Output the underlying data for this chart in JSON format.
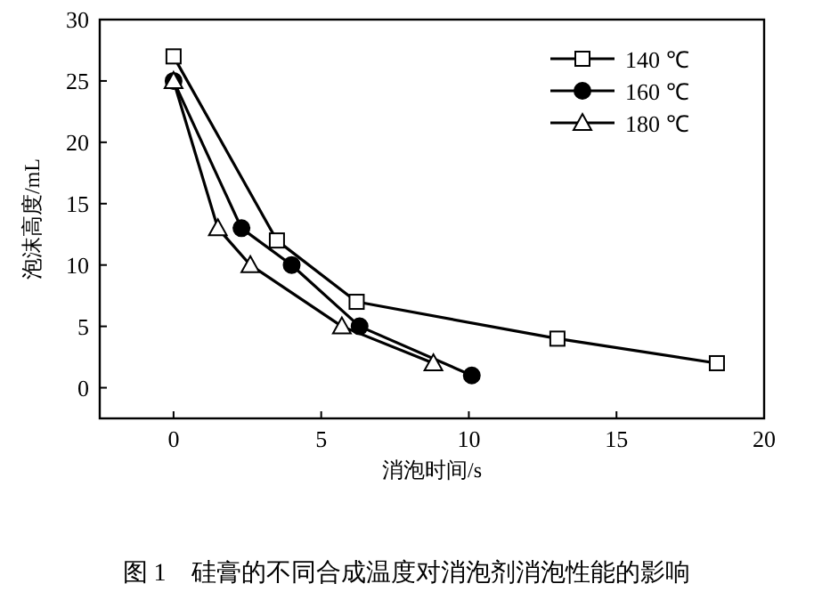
{
  "chart_data": {
    "type": "line",
    "xlabel": "消泡时间/s",
    "ylabel": "泡沫高度/mL",
    "annotations": [
      "图 1　硅膏的不同合成温度对消泡剂消泡性能的影响"
    ],
    "xlim": [
      -2.5,
      20
    ],
    "xticks": [
      0,
      5,
      10,
      15,
      20
    ],
    "ylim": [
      -2.5,
      30
    ],
    "yticks": [
      0,
      5,
      10,
      15,
      20,
      25,
      30
    ],
    "grid": false,
    "legend": "top right",
    "line_style": "solid",
    "series": [
      {
        "name": "140 ℃",
        "color": "#000000",
        "marker": "square",
        "x": [
          0,
          3.5,
          6.2,
          13,
          18.4
        ],
        "values": [
          27,
          12,
          7,
          4,
          2
        ]
      },
      {
        "name": "160 ℃",
        "color": "#000000",
        "marker": "circle",
        "x": [
          0,
          2.3,
          4,
          6.3,
          10.1
        ],
        "values": [
          25,
          13,
          10,
          5,
          1
        ]
      },
      {
        "name": "180 ℃",
        "color": "#000000",
        "marker": "triangle",
        "x": [
          0,
          1.5,
          2.6,
          5.7,
          8.8
        ],
        "values": [
          25,
          13,
          10,
          5,
          2
        ]
      }
    ]
  }
}
